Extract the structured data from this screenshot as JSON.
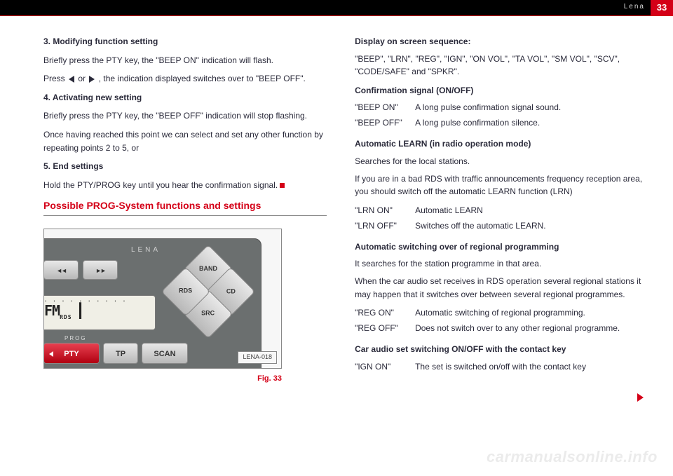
{
  "page": {
    "number": "33",
    "header_label": "Lena",
    "watermark": "carmanualsonline.info"
  },
  "left": {
    "step3_title": "3. Modifying function setting",
    "step3_line1": "Briefly press the PTY key, the \"BEEP ON\" indication will flash.",
    "step3_line2a": "Press ",
    "step3_line2b": " or ",
    "step3_line2c": " , the indication displayed switches over to \"BEEP OFF\".",
    "step4_title": "4. Activating new setting",
    "step4_line1": "Briefly press the PTY key, the \"BEEP OFF\" indication will stop flashing.",
    "step4_line2": "Once having reached this point we can select and set any other function by repeating points 2 to 5, or",
    "step5_title": "5. End settings",
    "step5_line1": "Hold the PTY/PROG key until you hear the confirmation signal.",
    "section_heading": "Possible PROG-System functions and settings",
    "figure": {
      "brand": "LENA",
      "btn_rew": "◄◄",
      "btn_ff": "►►",
      "d_band": "BAND",
      "d_cd": "CD",
      "d_src": "SRC",
      "d_rds": "RDS",
      "lcd_main": "FM",
      "lcd_rds": "RDS",
      "lcd_bars": "┃",
      "lcd_in": "IN",
      "prog_label": "PROG",
      "pty": "PTY",
      "tp": "TP",
      "scan": "SCAN",
      "label": "LENA-018",
      "caption": "Fig. 33"
    }
  },
  "right": {
    "seq_label": "Display on screen sequence:",
    "seq_line": "\"BEEP\", \"LRN\", \"REG\", \"IGN\", \"ON VOL\", \"TA VOL\", \"SM VOL\", \"SCV\", \"CODE/SAFE\" and \"SPKR\".",
    "conf_title": "Confirmation signal (ON/OFF)",
    "conf_rows": [
      {
        "k": "\"BEEP ON\"",
        "v": "A long pulse confirmation signal sound."
      },
      {
        "k": "\"BEEP OFF\"",
        "v": "A long pulse confirmation silence."
      }
    ],
    "learn_title": "Automatic LEARN (in radio operation mode)",
    "learn_p1": "Searches for the local stations.",
    "learn_p2": "If you are in a bad RDS with traffic announcements frequency reception area, you should switch off the automatic LEARN function (LRN)",
    "learn_rows": [
      {
        "k": "\"LRN ON\"",
        "v": "Automatic LEARN"
      },
      {
        "k": "\"LRN OFF\"",
        "v": "Switches off the automatic LEARN."
      }
    ],
    "reg_title": "Automatic switching over of regional programming",
    "reg_p1": "It searches for the station programme in that area.",
    "reg_p2": "When the car audio set receives in RDS operation several regional stations it may happen that it switches over between several regional programmes.",
    "reg_rows": [
      {
        "k": "\"REG ON\"",
        "v": "Automatic switching of regional programming."
      },
      {
        "k": "\"REG OFF\"",
        "v": "Does not switch over to any other regional programme."
      }
    ],
    "ign_title": "Car audio set switching ON/OFF with the contact key",
    "ign_rows": [
      {
        "k": "\"IGN ON\"",
        "v": "The set is switched on/off with the contact key"
      }
    ]
  }
}
